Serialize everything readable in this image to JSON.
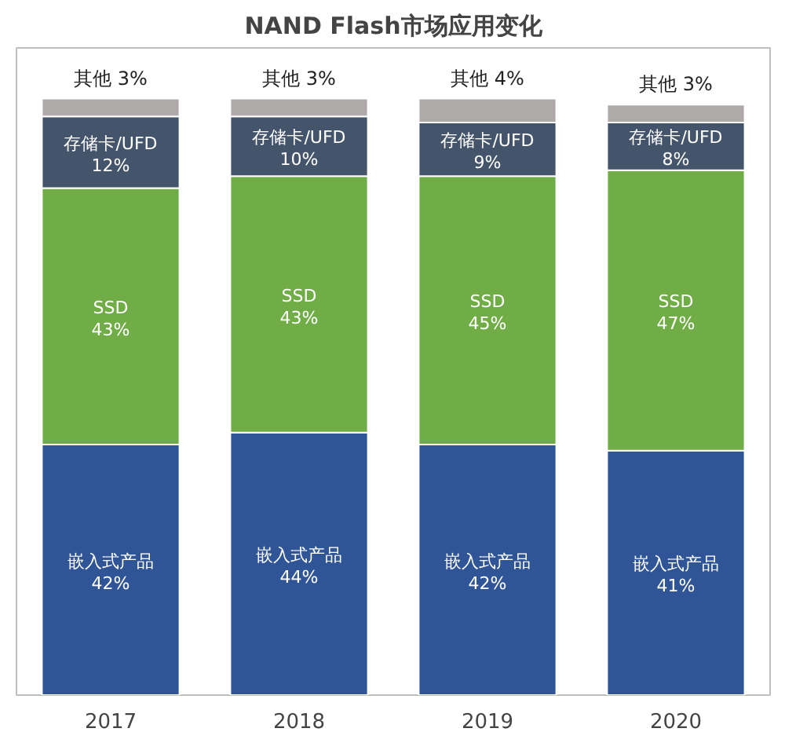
{
  "chart_data": {
    "type": "bar",
    "title": "NAND Flash市场应用变化",
    "stacked": true,
    "categories": [
      "2017",
      "2018",
      "2019",
      "2020"
    ],
    "series": [
      {
        "name": "嵌入式产品",
        "color": "#2f5597",
        "values": [
          42,
          44,
          42,
          41
        ],
        "value_labels": [
          "42%",
          "44%",
          "42%",
          "41%"
        ]
      },
      {
        "name": "SSD",
        "color": "#70ad47",
        "values": [
          43,
          43,
          45,
          47
        ],
        "value_labels": [
          "43%",
          "43%",
          "45%",
          "47%"
        ]
      },
      {
        "name": "存储卡/UFD",
        "color": "#44546a",
        "values": [
          12,
          10,
          9,
          8
        ],
        "value_labels": [
          "12%",
          "10%",
          "9%",
          "8%"
        ]
      },
      {
        "name": "其他",
        "color": "#aeaaaa",
        "values": [
          3,
          3,
          4,
          3
        ],
        "value_labels": [
          "3%",
          "3%",
          "4%",
          "3%"
        ]
      }
    ],
    "grid": false
  }
}
